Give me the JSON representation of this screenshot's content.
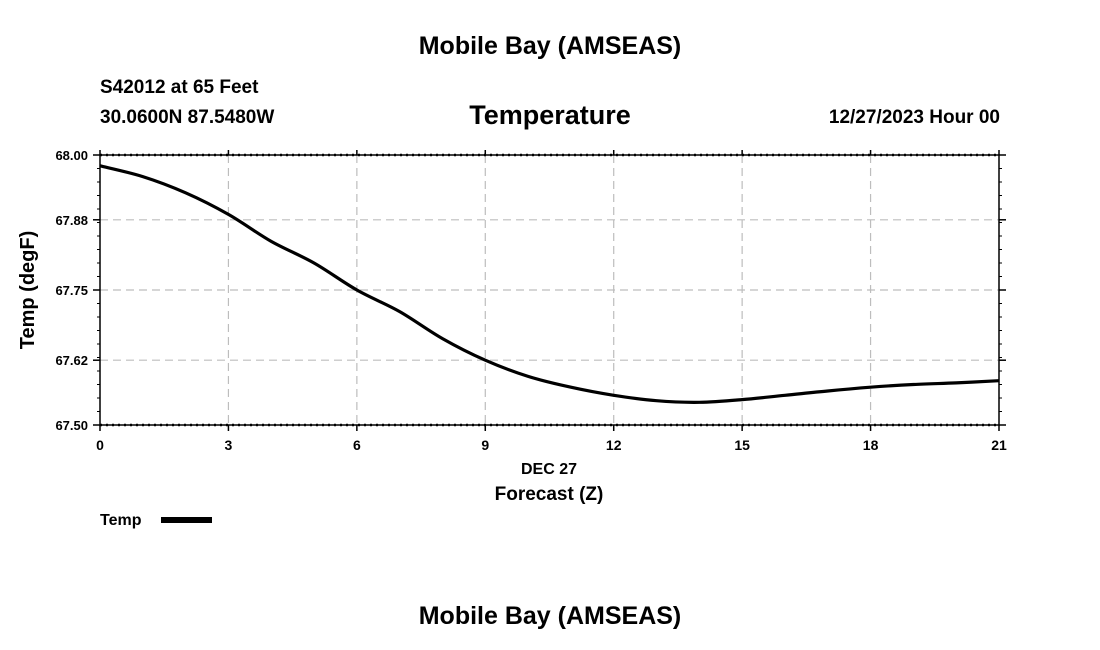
{
  "header": {
    "title": "Mobile Bay (AMSEAS)",
    "station": "S42012 at 65 Feet",
    "coords": "30.0600N  87.5480W",
    "variable": "Temperature",
    "datetime": "12/27/2023 Hour 00"
  },
  "footer": {
    "title": "Mobile Bay (AMSEAS)"
  },
  "chart_data": {
    "type": "line",
    "xlabel_date": "DEC 27",
    "xlabel": "Forecast (Z)",
    "ylabel": "Temp (degF)",
    "xlim": [
      0,
      21
    ],
    "ylim": [
      67.5,
      68.0
    ],
    "x_ticks": [
      "0",
      "3",
      "6",
      "9",
      "12",
      "15",
      "18",
      "21"
    ],
    "y_ticks": [
      "67.50",
      "67.62",
      "67.75",
      "67.88",
      "68.00"
    ],
    "grid": true,
    "legend_position": "bottom-left",
    "series": [
      {
        "name": "Temp",
        "color": "#000000",
        "x": [
          0,
          1,
          2,
          3,
          4,
          5,
          6,
          7,
          8,
          9,
          10,
          11,
          12,
          13,
          14,
          15,
          16,
          17,
          18,
          19,
          20,
          21
        ],
        "values": [
          67.98,
          67.96,
          67.93,
          67.89,
          67.84,
          67.8,
          67.75,
          67.71,
          67.66,
          67.62,
          67.59,
          67.57,
          67.555,
          67.545,
          67.542,
          67.547,
          67.555,
          67.563,
          67.57,
          67.575,
          67.578,
          67.582
        ]
      }
    ]
  }
}
